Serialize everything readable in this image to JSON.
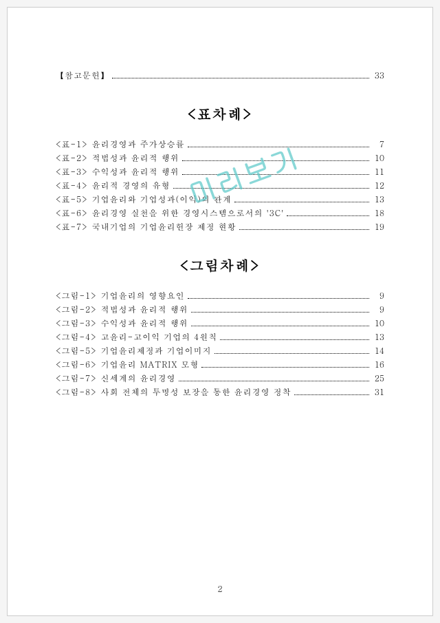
{
  "references": {
    "label": "【참고문헌】",
    "page": "33"
  },
  "heading_tables": "<표차례>",
  "tables": [
    {
      "label": "<표-1>",
      "title": "윤리경영과 주가상승률",
      "page": "7"
    },
    {
      "label": "<표-2>",
      "title": "적법성과 윤리적 행위",
      "page": "10"
    },
    {
      "label": "<표-3>",
      "title": "수익성과 윤리적 행위",
      "page": "11"
    },
    {
      "label": "<표-4>",
      "title": "윤리적 경영의 유형",
      "page": "12"
    },
    {
      "label": "<표-5>",
      "title": "기업윤리와 기업성과(이익)의 관계",
      "page": "13"
    },
    {
      "label": "<표-6>",
      "title": "윤리경영 실천을 위한 경영시스템으로서의 '3C'",
      "page": "18"
    },
    {
      "label": "<표-7>",
      "title": "국내기업의 기업윤리헌장 제정 현황",
      "page": "19"
    }
  ],
  "heading_figures": "<그림차례>",
  "figures": [
    {
      "label": "<그림-1>",
      "title": "기업윤리의 영향요인",
      "page": "9"
    },
    {
      "label": "<그림-2>",
      "title": "적법성과 윤리적 행위",
      "page": "9"
    },
    {
      "label": "<그림-3>",
      "title": "수익성과 윤리적 행위",
      "page": "10"
    },
    {
      "label": "<그림-4>",
      "title": "고윤리-고이익 기업의 4원칙",
      "page": "13"
    },
    {
      "label": "<그림-5>",
      "title": "기업윤리제정과 기업이미지",
      "page": "14"
    },
    {
      "label": "<그림-6>",
      "title": "기업윤리 MATRIX 모형",
      "page": "16"
    },
    {
      "label": "<그림-7>",
      "title": "신세계의 윤리경영",
      "page": "25"
    },
    {
      "label": "<그림-8>",
      "title": "사회 전체의 투명성 보장을 통한 윤리경영 정착",
      "page": "31"
    }
  ],
  "watermark": "미리보기",
  "pagenum": "2"
}
